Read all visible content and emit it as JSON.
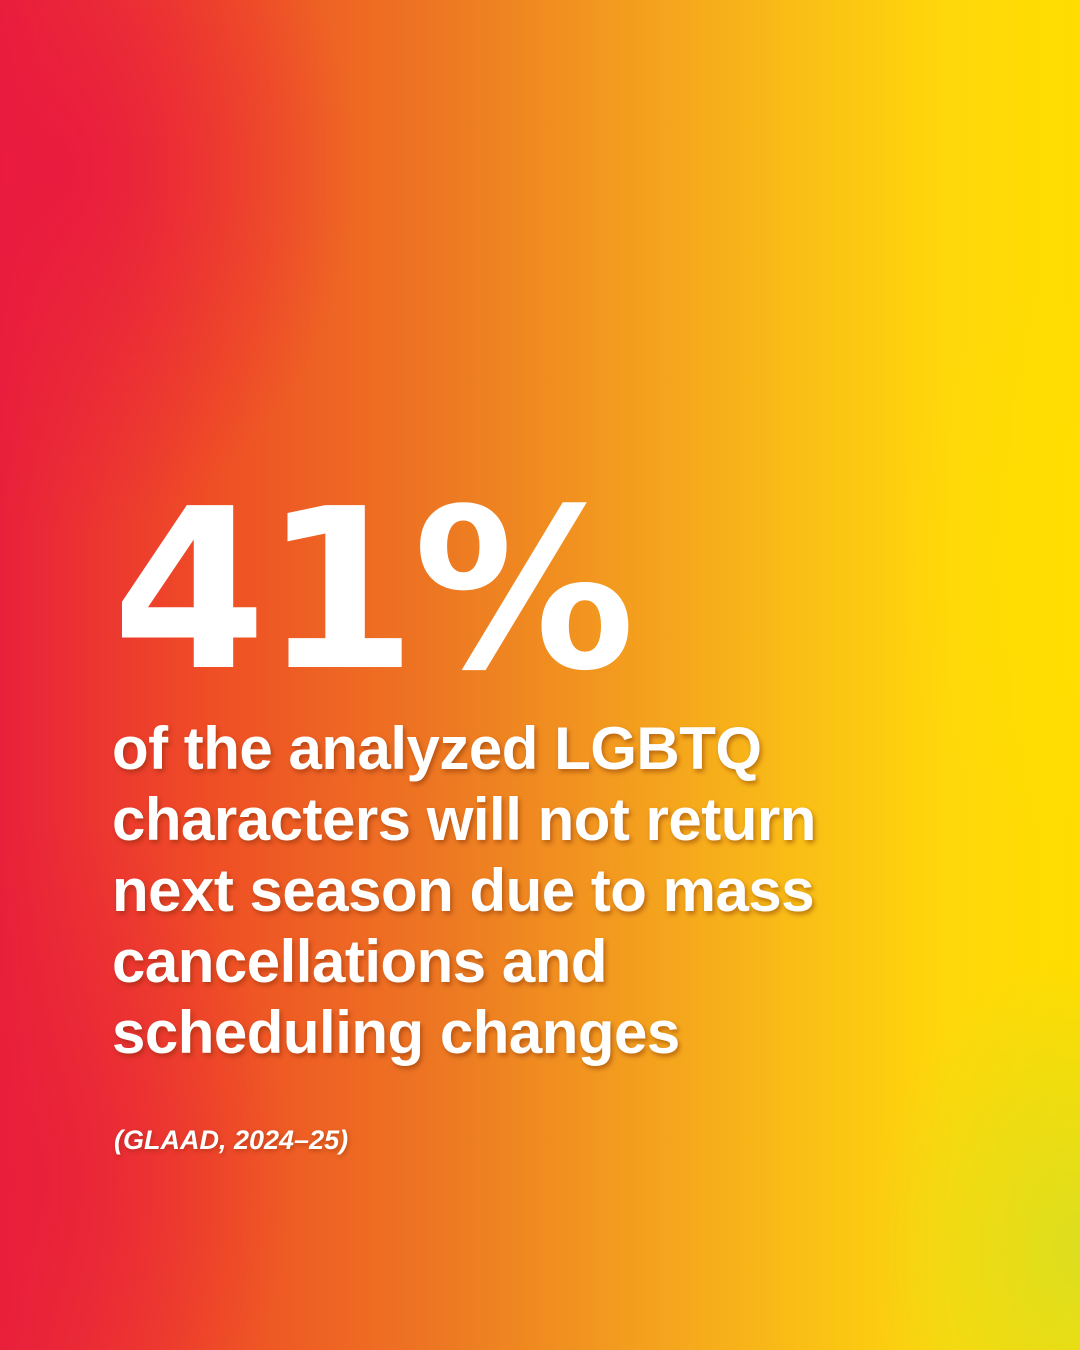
{
  "stat": {
    "value": "41%",
    "description": "of the analyzed LGBTQ characters will not return next season due to mass cancellations and scheduling changes",
    "source": "(GLAAD, 2024–25)"
  },
  "colors": {
    "gradient_left": "#e9203a",
    "gradient_mid": "#ed7a22",
    "gradient_right": "#ffdd00",
    "text": "#ffffff"
  }
}
